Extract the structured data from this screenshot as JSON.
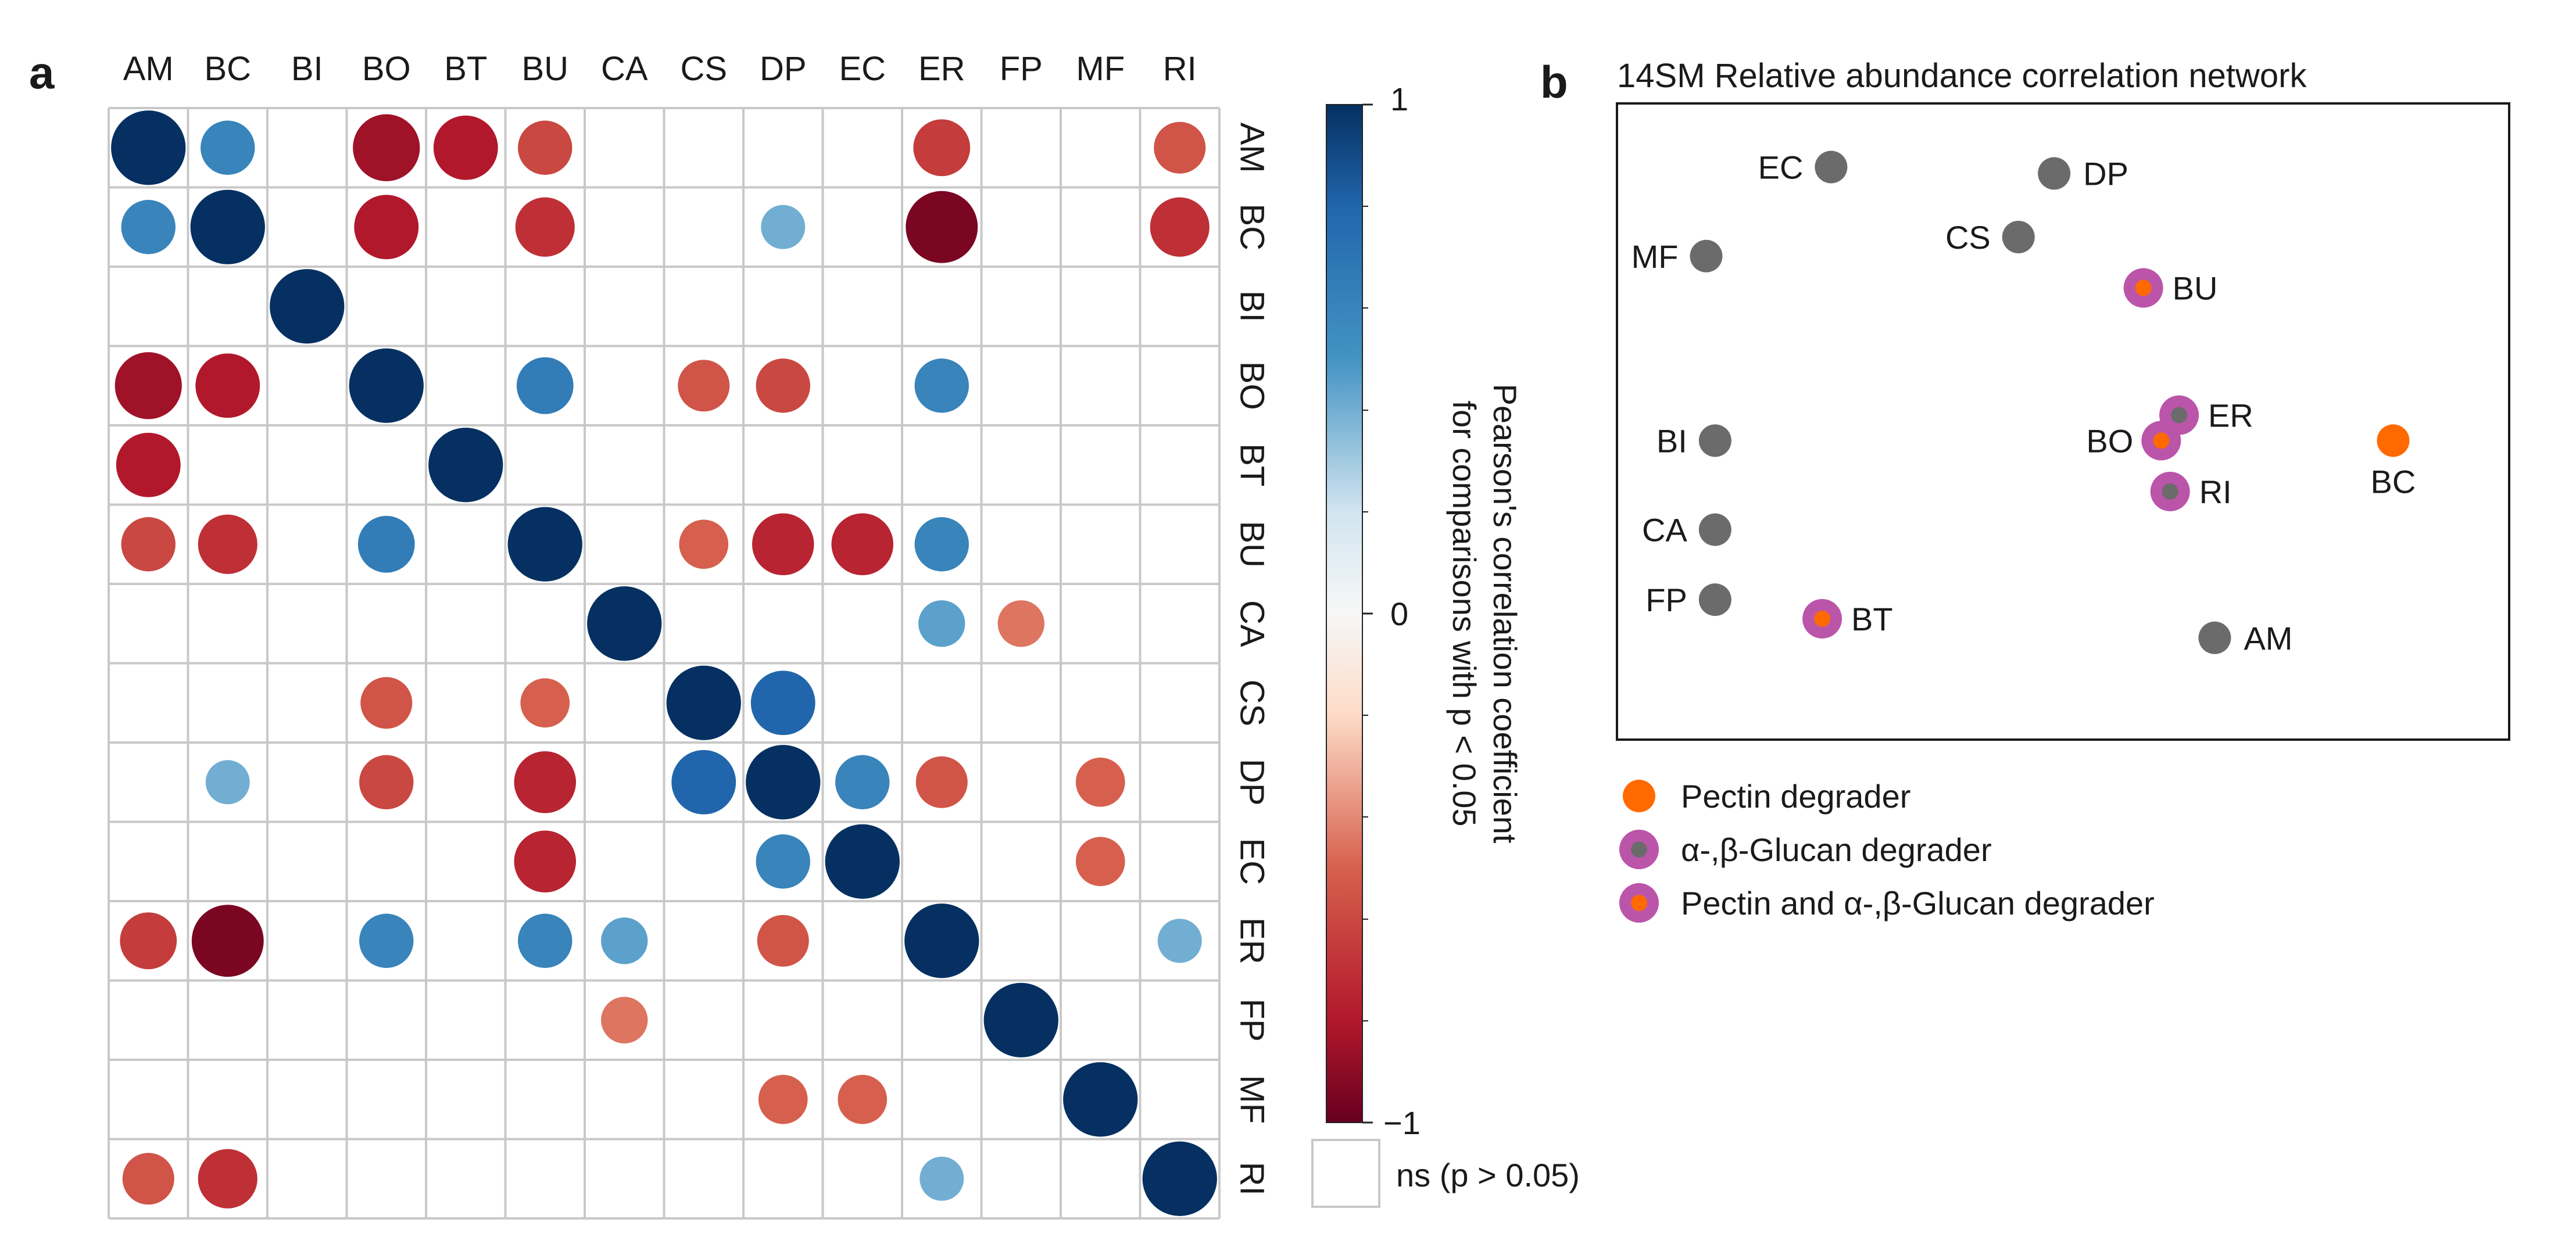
{
  "panels": {
    "a": "a",
    "b": "b"
  },
  "chart_data": [
    {
      "type": "heatmap",
      "title": "",
      "labels": [
        "AM",
        "BC",
        "BI",
        "BO",
        "BT",
        "BU",
        "CA",
        "CS",
        "DP",
        "EC",
        "ER",
        "FP",
        "MF",
        "RI"
      ],
      "matrix": [
        [
          1.0,
          0.6,
          0,
          -0.85,
          -0.8,
          -0.6,
          0,
          0,
          0,
          0,
          -0.65,
          0,
          0,
          -0.55
        ],
        [
          0.6,
          1.0,
          0,
          -0.8,
          0,
          -0.7,
          0,
          0,
          0.4,
          0,
          -0.95,
          0,
          0,
          -0.7
        ],
        [
          0,
          0,
          1.0,
          0,
          0,
          0,
          0,
          0,
          0,
          0,
          0,
          0,
          0,
          0
        ],
        [
          -0.85,
          -0.8,
          0,
          1.0,
          0,
          0.65,
          0,
          -0.55,
          -0.6,
          0,
          0.6,
          0,
          0,
          0
        ],
        [
          -0.8,
          0,
          0,
          0,
          1.0,
          0,
          0,
          0,
          0,
          0,
          0,
          0,
          0,
          0
        ],
        [
          -0.6,
          -0.7,
          0,
          0.65,
          0,
          1.0,
          0,
          -0.5,
          -0.75,
          -0.75,
          0.6,
          0,
          0,
          0
        ],
        [
          0,
          0,
          0,
          0,
          0,
          0,
          1.0,
          0,
          0,
          0,
          0.45,
          -0.45,
          0,
          0
        ],
        [
          0,
          0,
          0,
          -0.55,
          0,
          -0.5,
          0,
          1.0,
          0.8,
          0,
          0,
          0,
          0,
          0
        ],
        [
          0,
          0.4,
          0,
          -0.6,
          0,
          -0.75,
          0,
          0.8,
          1.0,
          0.6,
          -0.55,
          0,
          -0.5,
          0
        ],
        [
          0,
          0,
          0,
          0,
          0,
          -0.75,
          0,
          0,
          0.6,
          1.0,
          0,
          0,
          -0.5,
          0
        ],
        [
          -0.65,
          -0.95,
          0,
          0.6,
          0,
          0.6,
          0.45,
          0,
          -0.55,
          0,
          1.0,
          0,
          0,
          0.4
        ],
        [
          0,
          0,
          0,
          0,
          0,
          0,
          -0.45,
          0,
          0,
          0,
          0,
          1.0,
          0,
          0
        ],
        [
          0,
          0,
          0,
          0,
          0,
          0,
          0,
          0,
          -0.5,
          -0.5,
          0,
          0,
          1.0,
          0
        ],
        [
          -0.55,
          -0.7,
          0,
          0,
          0,
          0,
          0,
          0,
          0,
          0,
          0.4,
          0,
          0,
          1.0
        ]
      ],
      "colorbar": {
        "ticks": [
          "1",
          "0",
          "−1"
        ],
        "min": -1,
        "max": 1,
        "label_line1": "Pearson's correlation coefficient",
        "label_line2": "for comparisons with p < 0.05"
      },
      "ns_legend": "ns (p > 0.05)",
      "colors": {
        "strong_neg": "#67001f",
        "mid_neg": "#d6604d",
        "light_neg": "#fddbc7",
        "zero": "#f7f7f7",
        "light_pos": "#d1e5f0",
        "mid_pos": "#4393c3",
        "strong_pos": "#053061",
        "grid": "#c8c8c8"
      }
    },
    {
      "type": "scatter",
      "title": "14SM Relative abundance correlation network",
      "nodes": [
        {
          "label": "EC",
          "x": 0.24,
          "y": 0.9,
          "kind": "none"
        },
        {
          "label": "DP",
          "x": 0.49,
          "y": 0.89,
          "kind": "none"
        },
        {
          "label": "MF",
          "x": 0.1,
          "y": 0.76,
          "kind": "none"
        },
        {
          "label": "CS",
          "x": 0.45,
          "y": 0.79,
          "kind": "none"
        },
        {
          "label": "BU",
          "x": 0.59,
          "y": 0.71,
          "kind": "both"
        },
        {
          "label": "ER",
          "x": 0.63,
          "y": 0.51,
          "kind": "glucan"
        },
        {
          "label": "BO",
          "x": 0.61,
          "y": 0.47,
          "kind": "both"
        },
        {
          "label": "BC",
          "x": 0.87,
          "y": 0.47,
          "kind": "pectin"
        },
        {
          "label": "BI",
          "x": 0.11,
          "y": 0.47,
          "kind": "none"
        },
        {
          "label": "RI",
          "x": 0.62,
          "y": 0.39,
          "kind": "glucan"
        },
        {
          "label": "CA",
          "x": 0.11,
          "y": 0.33,
          "kind": "none"
        },
        {
          "label": "FP",
          "x": 0.11,
          "y": 0.22,
          "kind": "none"
        },
        {
          "label": "BT",
          "x": 0.23,
          "y": 0.19,
          "kind": "both"
        },
        {
          "label": "AM",
          "x": 0.67,
          "y": 0.16,
          "kind": "none"
        }
      ],
      "legend": [
        {
          "kind": "pectin",
          "label": "Pectin degrader"
        },
        {
          "kind": "glucan",
          "label": "α-,β-Glucan degrader"
        },
        {
          "kind": "both",
          "label": "Pectin and α-,β-Glucan degrader"
        }
      ],
      "colors": {
        "gray": "#6b6b6b",
        "orange": "#ff6a00",
        "purple": "#bb55aa"
      }
    }
  ]
}
